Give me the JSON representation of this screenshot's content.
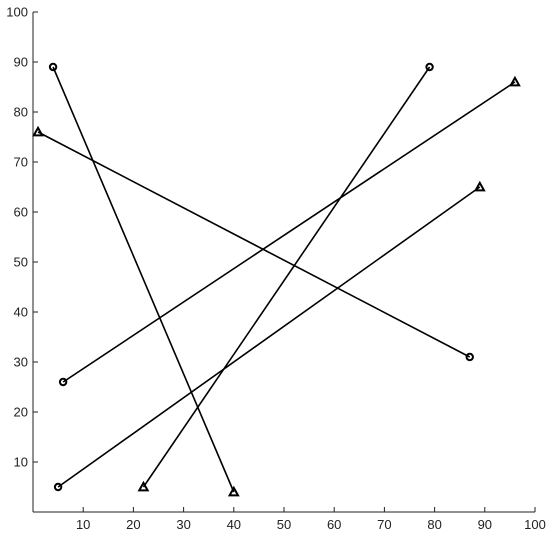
{
  "chart_data": {
    "type": "line",
    "title": "",
    "xlabel": "",
    "ylabel": "",
    "xlim": [
      0,
      100
    ],
    "ylim": [
      0,
      100
    ],
    "grid": false,
    "legend": "none",
    "x_ticks": [
      10,
      20,
      30,
      40,
      50,
      60,
      70,
      80,
      90,
      100
    ],
    "y_ticks": [
      10,
      20,
      30,
      40,
      50,
      60,
      70,
      80,
      90,
      100
    ],
    "line_color": "#000000",
    "segments": [
      {
        "start": {
          "x": 4,
          "y": 89,
          "marker": "circle"
        },
        "end": {
          "x": 40,
          "y": 4,
          "marker": "triangle"
        }
      },
      {
        "start": {
          "x": 79,
          "y": 89,
          "marker": "circle"
        },
        "end": {
          "x": 22,
          "y": 5,
          "marker": "triangle"
        }
      },
      {
        "start": {
          "x": 6,
          "y": 26,
          "marker": "circle"
        },
        "end": {
          "x": 96,
          "y": 86,
          "marker": "triangle"
        }
      },
      {
        "start": {
          "x": 87,
          "y": 31,
          "marker": "circle"
        },
        "end": {
          "x": 1,
          "y": 76,
          "marker": "triangle"
        }
      },
      {
        "start": {
          "x": 5,
          "y": 5,
          "marker": "circle"
        },
        "end": {
          "x": 89,
          "y": 65,
          "marker": "triangle"
        }
      }
    ]
  }
}
